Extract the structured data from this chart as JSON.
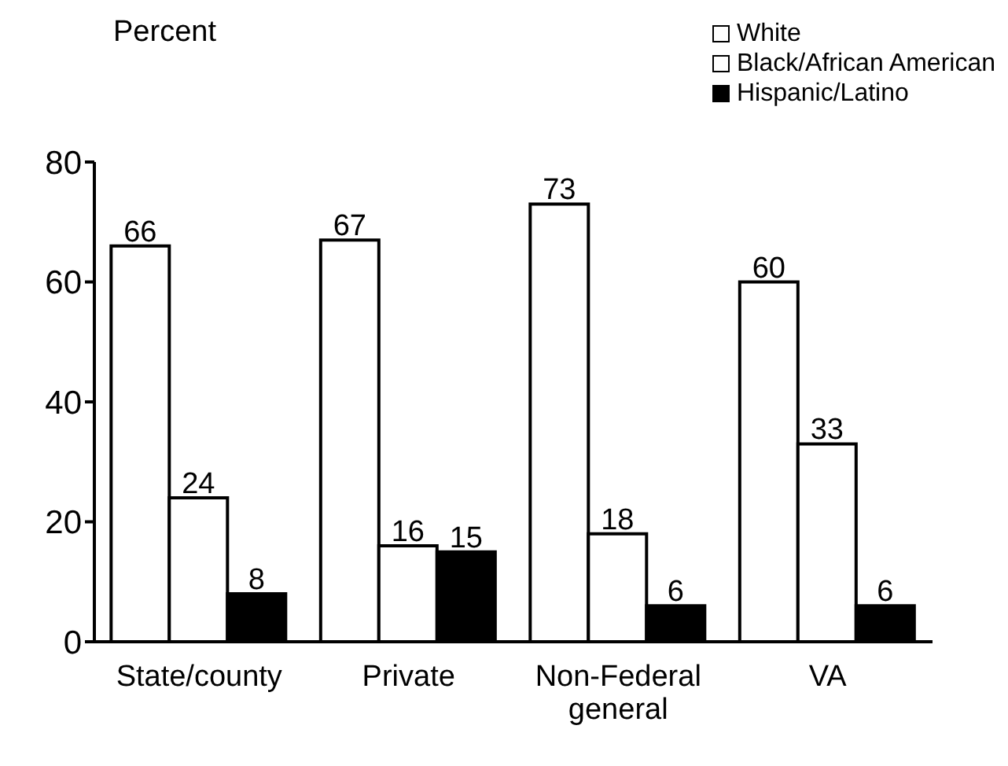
{
  "chart_data": {
    "type": "bar",
    "ylabel": "Percent",
    "categories": [
      "State/county",
      "Private",
      "Non-Federal general",
      "VA"
    ],
    "series": [
      {
        "name": "White",
        "color": "#ffffff",
        "values": [
          66,
          67,
          73,
          60
        ]
      },
      {
        "name": "Black/African American",
        "color": "#ffffff",
        "values": [
          24,
          16,
          18,
          33
        ]
      },
      {
        "name": "Hispanic/Latino",
        "color": "#000000",
        "values": [
          8,
          15,
          6,
          6
        ]
      }
    ],
    "ylim": [
      0,
      80
    ],
    "yticks": [
      0,
      20,
      40,
      60,
      80
    ],
    "grid": false,
    "legend": "top right",
    "data_labels": true
  }
}
